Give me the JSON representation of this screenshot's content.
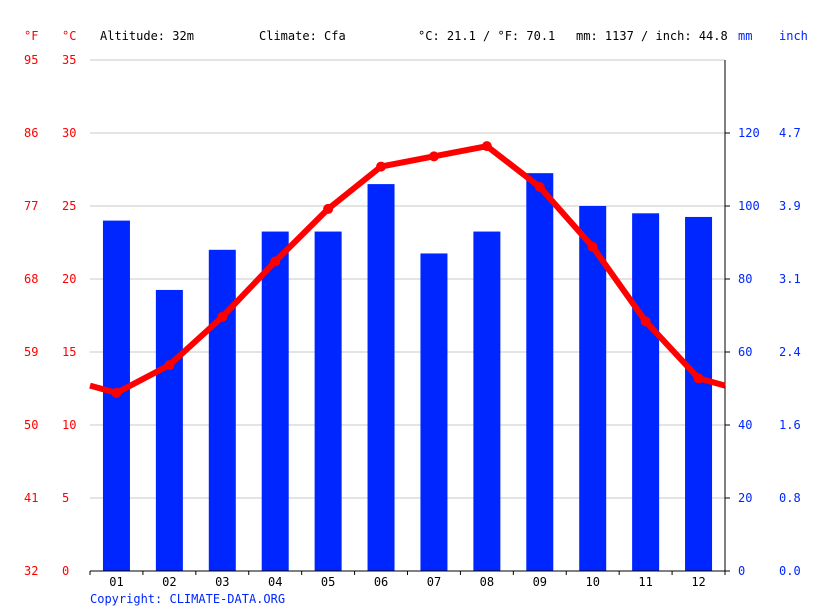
{
  "header": {
    "unit_f": "°F",
    "unit_c": "°C",
    "altitude": "Altitude: 32m",
    "climate": "Climate: Cfa",
    "avg_temp": "°C: 21.1 / °F: 70.1",
    "precip": "mm: 1137 / inch: 44.8",
    "unit_mm": "mm",
    "unit_inch": "inch"
  },
  "footer": {
    "copyright": "Copyright: CLIMATE-DATA.ORG"
  },
  "colors": {
    "temp": "#ff0000",
    "precip": "#0026ff",
    "grid": "#c8c8c8",
    "axis": "#000000",
    "text": "#000000",
    "copyright": "#0026ff"
  },
  "chart_data": {
    "type": "bar",
    "categories": [
      "01",
      "02",
      "03",
      "04",
      "05",
      "06",
      "07",
      "08",
      "09",
      "10",
      "11",
      "12"
    ],
    "series": [
      {
        "type": "bar",
        "axis": "right",
        "values": [
          96,
          77,
          88,
          93,
          93,
          106,
          87,
          93,
          109,
          100,
          98,
          97
        ]
      },
      {
        "type": "line",
        "axis": "left",
        "values": [
          12.2,
          14.1,
          17.4,
          21.2,
          24.8,
          27.7,
          28.4,
          29.1,
          26.3,
          22.2,
          17.1,
          13.2
        ]
      }
    ],
    "left_axis": {
      "ylim": [
        0,
        35
      ],
      "ticks": [
        0,
        5,
        10,
        15,
        20,
        25,
        30,
        35
      ],
      "fahrenheit_ticks": [
        32,
        41,
        50,
        59,
        68,
        77,
        86,
        95
      ]
    },
    "right_axis": {
      "ylim": [
        0,
        140
      ],
      "ticks": [
        0,
        20,
        40,
        60,
        80,
        100,
        120
      ],
      "inch_ticks": [
        "0.0",
        "0.8",
        "1.6",
        "2.4",
        "3.1",
        "3.9",
        "4.7"
      ]
    },
    "grid": true
  }
}
